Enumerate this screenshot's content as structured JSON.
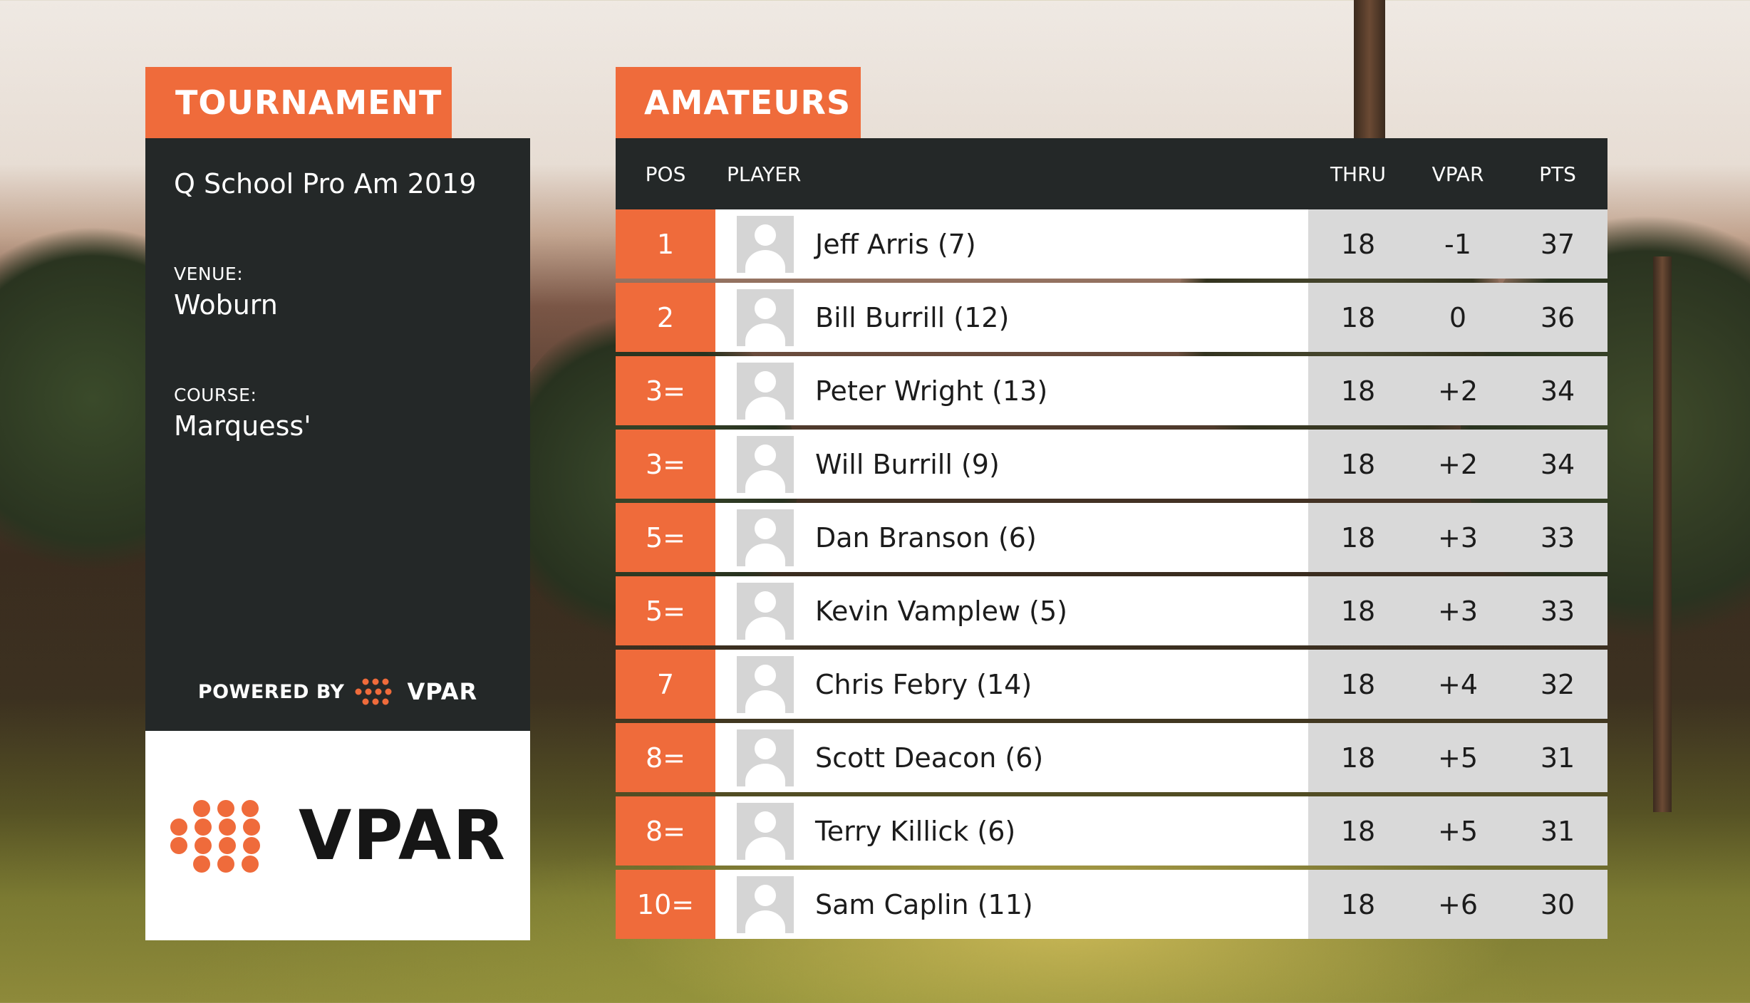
{
  "tournament": {
    "tab_label": "TOURNAMENT",
    "name": "Q School Pro Am 2019",
    "venue_label": "VENUE:",
    "venue": "Woburn",
    "course_label": "COURSE:",
    "course": "Marquess'",
    "powered_by": "POWERED BY",
    "powered_brand": "VPAR",
    "logo_text": "VPAR"
  },
  "leaderboard": {
    "tab_label": "AMATEURS",
    "columns": {
      "pos": "POS",
      "player": "PLAYER",
      "thru": "THRU",
      "vpar": "VPAR",
      "pts": "PTS"
    },
    "rows": [
      {
        "pos": "1",
        "player": "Jeff Arris (7)",
        "thru": "18",
        "vpar": "-1",
        "pts": "37"
      },
      {
        "pos": "2",
        "player": "Bill Burrill (12)",
        "thru": "18",
        "vpar": "0",
        "pts": "36"
      },
      {
        "pos": "3=",
        "player": "Peter Wright (13)",
        "thru": "18",
        "vpar": "+2",
        "pts": "34"
      },
      {
        "pos": "3=",
        "player": "Will Burrill (9)",
        "thru": "18",
        "vpar": "+2",
        "pts": "34"
      },
      {
        "pos": "5=",
        "player": "Dan Branson (6)",
        "thru": "18",
        "vpar": "+3",
        "pts": "33"
      },
      {
        "pos": "5=",
        "player": "Kevin Vamplew (5)",
        "thru": "18",
        "vpar": "+3",
        "pts": "33"
      },
      {
        "pos": "7",
        "player": "Chris Febry (14)",
        "thru": "18",
        "vpar": "+4",
        "pts": "32"
      },
      {
        "pos": "8=",
        "player": "Scott Deacon (6)",
        "thru": "18",
        "vpar": "+5",
        "pts": "31"
      },
      {
        "pos": "8=",
        "player": "Terry Killick (6)",
        "thru": "18",
        "vpar": "+5",
        "pts": "31"
      },
      {
        "pos": "10=",
        "player": "Sam Caplin (11)",
        "thru": "18",
        "vpar": "+6",
        "pts": "30"
      }
    ]
  },
  "colors": {
    "accent": "#ef6b3b",
    "panel_dark": "#242828",
    "stat_cell": "#d9d9d9"
  },
  "icons": {
    "avatar": "user-placeholder-icon",
    "brand": "vpar-dots-logo-icon"
  }
}
